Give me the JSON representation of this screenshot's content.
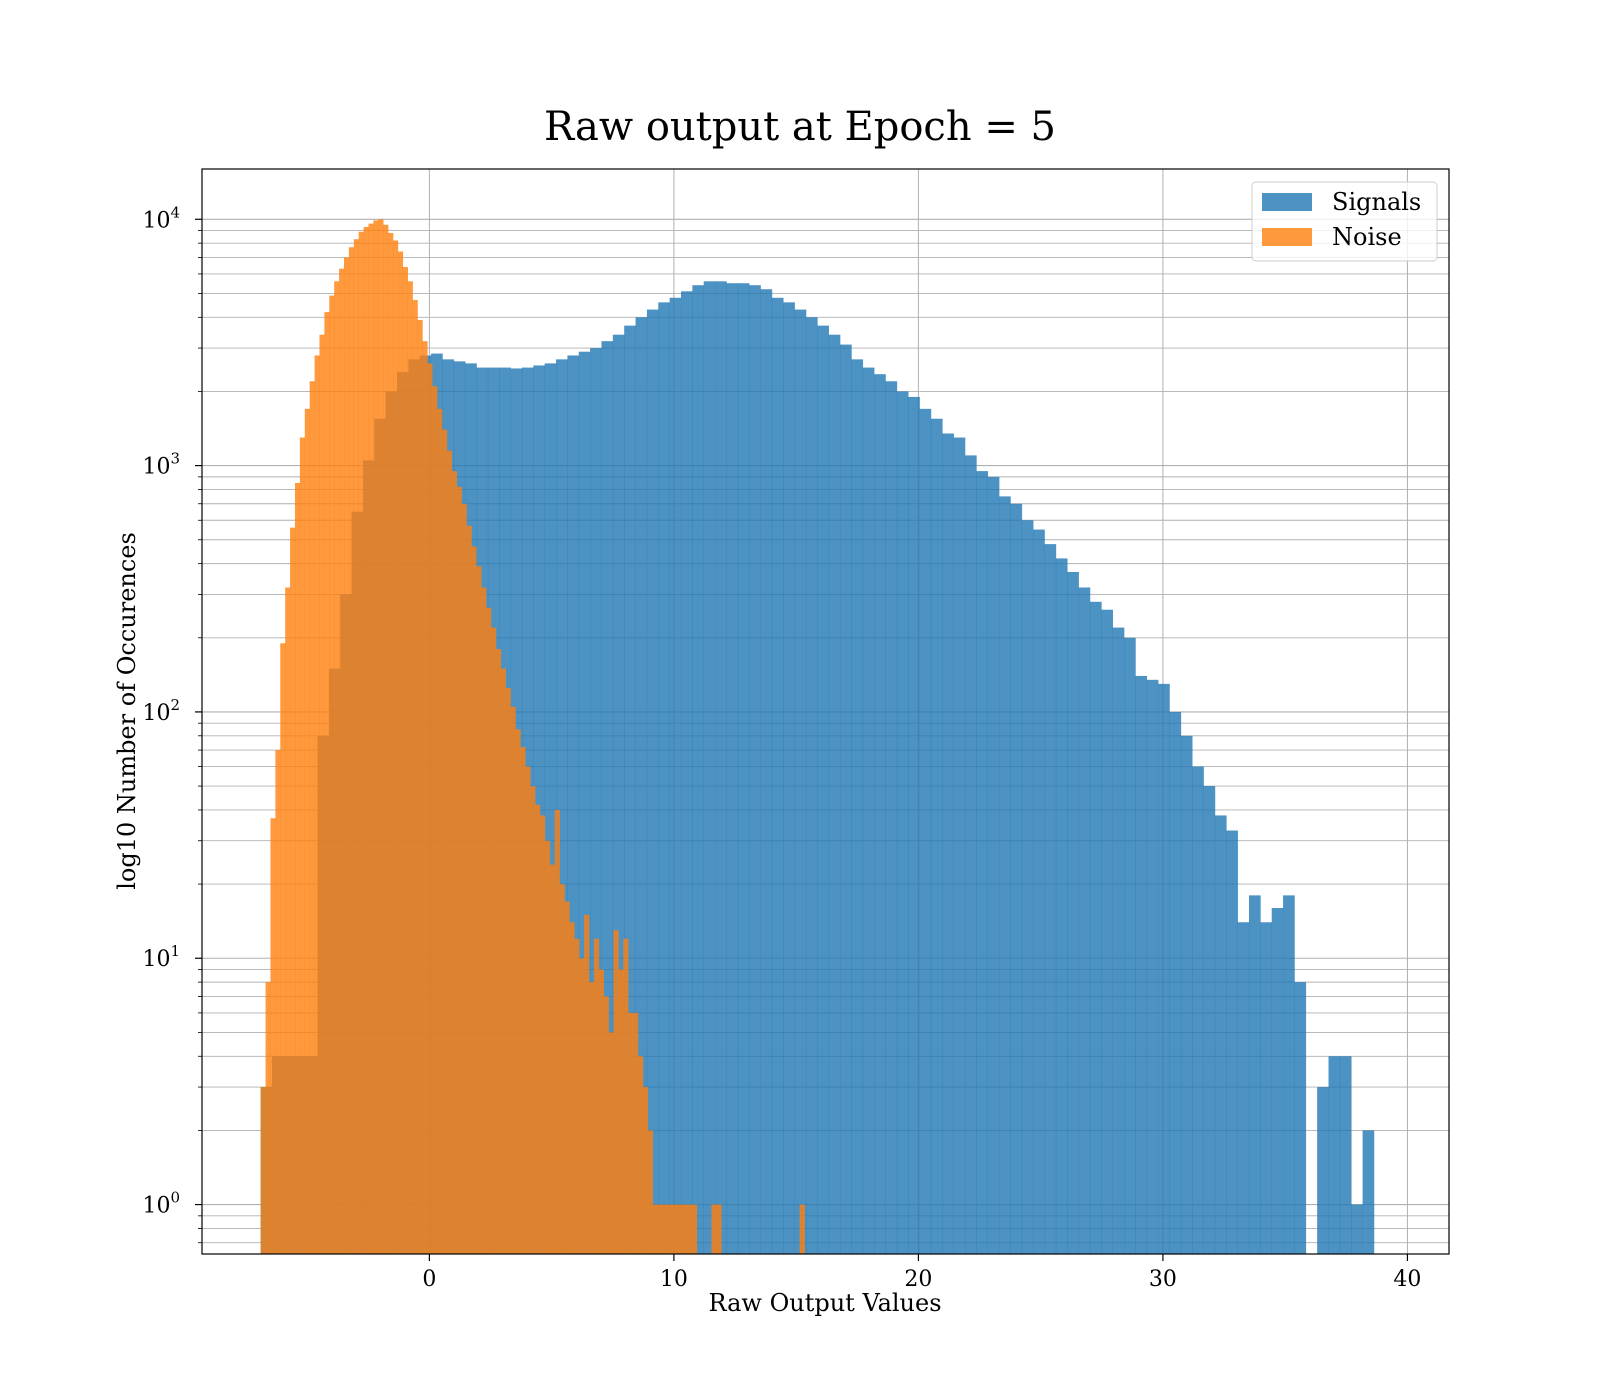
{
  "chart_data": {
    "type": "bar",
    "title": "Raw output at Epoch = 5",
    "xlabel": "Raw Output Values",
    "ylabel": "log10 Number of Occurences",
    "x_scale": "linear",
    "y_scale": "log10",
    "xlim": [
      -9.3,
      41.7
    ],
    "ylim": [
      0.63,
      16000
    ],
    "x_ticks": [
      {
        "value": 0,
        "label": "0"
      },
      {
        "value": 10,
        "label": "10"
      },
      {
        "value": 20,
        "label": "20"
      },
      {
        "value": 30,
        "label": "30"
      },
      {
        "value": 40,
        "label": "40"
      }
    ],
    "y_ticks": [
      {
        "value": 1,
        "base": "10",
        "exp": "0"
      },
      {
        "value": 10,
        "base": "10",
        "exp": "1"
      },
      {
        "value": 100,
        "base": "10",
        "exp": "2"
      },
      {
        "value": 1000,
        "base": "10",
        "exp": "3"
      },
      {
        "value": 10000,
        "base": "10",
        "exp": "4"
      }
    ],
    "grid": true,
    "legend_position": "top-right",
    "series": [
      {
        "name": "Signals",
        "color": "#1f77b4",
        "alpha": 0.8,
        "bin_start": -6.9,
        "bin_width": 0.4646,
        "counts": [
          3,
          4,
          4,
          4,
          4,
          80,
          150,
          300,
          650,
          1050,
          1550,
          2000,
          2400,
          2700,
          2800,
          2850,
          2700,
          2650,
          2600,
          2500,
          2500,
          2500,
          2480,
          2500,
          2550,
          2600,
          2700,
          2800,
          2900,
          3000,
          3200,
          3400,
          3700,
          4000,
          4300,
          4600,
          4800,
          5100,
          5400,
          5600,
          5600,
          5500,
          5500,
          5400,
          5200,
          4800,
          4600,
          4300,
          4000,
          3700,
          3400,
          3100,
          2700,
          2500,
          2350,
          2200,
          2000,
          1900,
          1700,
          1550,
          1350,
          1300,
          1100,
          950,
          900,
          750,
          700,
          600,
          550,
          480,
          420,
          370,
          320,
          280,
          260,
          220,
          200,
          140,
          135,
          130,
          100,
          80,
          60,
          50,
          38,
          33,
          14,
          18,
          14,
          16,
          18,
          8,
          0,
          3,
          4,
          4,
          1,
          2
        ]
      },
      {
        "name": "Noise",
        "color": "#ff7f0e",
        "alpha": 0.8,
        "bin_start": -6.9,
        "bin_width": 0.2004,
        "counts": [
          3,
          8,
          37,
          70,
          190,
          320,
          560,
          850,
          1300,
          1700,
          2200,
          2800,
          3400,
          4200,
          4900,
          5600,
          6300,
          7000,
          7700,
          8300,
          8900,
          9300,
          9600,
          9900,
          10000,
          9500,
          8800,
          8200,
          7400,
          6400,
          5600,
          4700,
          3900,
          3200,
          2600,
          2100,
          1700,
          1400,
          1150,
          950,
          820,
          700,
          570,
          470,
          390,
          320,
          265,
          220,
          180,
          150,
          125,
          105,
          85,
          72,
          60,
          50,
          42,
          38,
          30,
          24,
          40,
          20,
          17,
          14,
          12,
          10,
          15,
          8,
          12,
          9,
          7,
          5,
          13,
          9,
          12,
          6,
          6,
          4,
          3,
          2,
          1,
          1,
          1,
          1,
          1,
          1,
          1,
          1,
          1,
          0,
          0,
          0,
          1,
          1,
          0,
          0,
          0,
          0,
          0,
          0,
          0,
          0,
          0,
          0,
          0,
          0,
          0,
          0,
          0,
          0,
          1
        ]
      }
    ]
  }
}
